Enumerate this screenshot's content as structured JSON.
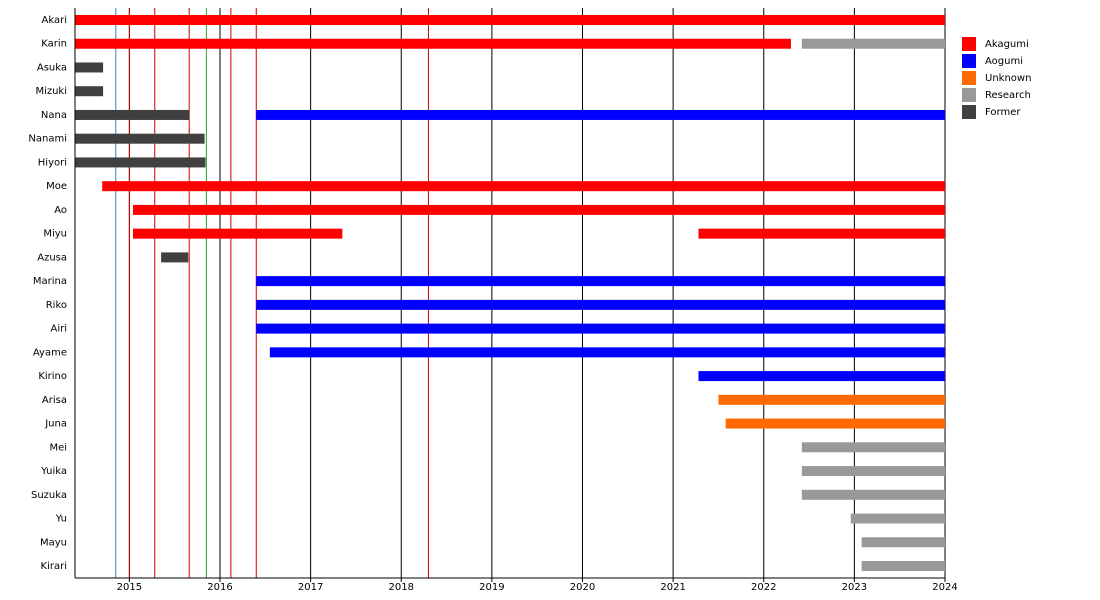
{
  "chart_data": {
    "type": "timeline",
    "categories": [
      "Akari",
      "Karin",
      "Asuka",
      "Mizuki",
      "Nana",
      "Nanami",
      "Hiyori",
      "Moe",
      "Ao",
      "Miyu",
      "Azusa",
      "Marina",
      "Riko",
      "Airi",
      "Ayame",
      "Kirino",
      "Arisa",
      "Juna",
      "Mei",
      "Yuika",
      "Suzuka",
      "Yu",
      "Mayu",
      "Kirari"
    ],
    "xlim": [
      2014.4,
      2024
    ],
    "xticks": [
      2015,
      2016,
      2017,
      2018,
      2019,
      2020,
      2021,
      2022,
      2023,
      2024
    ],
    "grid": true,
    "legend": "right",
    "vlines": [
      {
        "x": 2014.85,
        "color": "#2a8ab0"
      },
      {
        "x": 2015.0,
        "color": "#cc0000"
      },
      {
        "x": 2015.28,
        "color": "#cc0000"
      },
      {
        "x": 2015.66,
        "color": "#cc0000"
      },
      {
        "x": 2015.85,
        "color": "#2ca02c"
      },
      {
        "x": 2016.12,
        "color": "#cc0000"
      },
      {
        "x": 2016.4,
        "color": "#cc0000"
      },
      {
        "x": 2018.3,
        "color": "#cc0000"
      }
    ],
    "series": [
      {
        "name": "Akagumi",
        "color": "#ff0000",
        "bars": [
          {
            "category": "Akari",
            "start": 2014.4,
            "end": 2024
          },
          {
            "category": "Karin",
            "start": 2014.4,
            "end": 2022.3
          },
          {
            "category": "Moe",
            "start": 2014.7,
            "end": 2024
          },
          {
            "category": "Ao",
            "start": 2015.04,
            "end": 2024
          },
          {
            "category": "Miyu",
            "start": 2015.04,
            "end": 2017.35
          },
          {
            "category": "Miyu",
            "start": 2021.28,
            "end": 2024
          }
        ]
      },
      {
        "name": "Aogumi",
        "color": "#0000ff",
        "bars": [
          {
            "category": "Nana",
            "start": 2016.4,
            "end": 2024
          },
          {
            "category": "Marina",
            "start": 2016.4,
            "end": 2024
          },
          {
            "category": "Riko",
            "start": 2016.4,
            "end": 2024
          },
          {
            "category": "Airi",
            "start": 2016.4,
            "end": 2024
          },
          {
            "category": "Ayame",
            "start": 2016.55,
            "end": 2024
          },
          {
            "category": "Kirino",
            "start": 2021.28,
            "end": 2024
          }
        ]
      },
      {
        "name": "Unknown",
        "color": "#ff6a00",
        "bars": [
          {
            "category": "Arisa",
            "start": 2021.5,
            "end": 2024
          },
          {
            "category": "Juna",
            "start": 2021.58,
            "end": 2024
          }
        ]
      },
      {
        "name": "Research",
        "color": "#999999",
        "bars": [
          {
            "category": "Karin",
            "start": 2022.42,
            "end": 2024
          },
          {
            "category": "Mei",
            "start": 2022.42,
            "end": 2024
          },
          {
            "category": "Yuika",
            "start": 2022.42,
            "end": 2024
          },
          {
            "category": "Suzuka",
            "start": 2022.42,
            "end": 2024
          },
          {
            "category": "Yu",
            "start": 2022.96,
            "end": 2024
          },
          {
            "category": "Mayu",
            "start": 2023.08,
            "end": 2024
          },
          {
            "category": "Kirari",
            "start": 2023.08,
            "end": 2024
          }
        ]
      },
      {
        "name": "Former",
        "color": "#404040",
        "bars": [
          {
            "category": "Asuka",
            "start": 2014.4,
            "end": 2014.71
          },
          {
            "category": "Mizuki",
            "start": 2014.4,
            "end": 2014.71
          },
          {
            "category": "Nana",
            "start": 2014.4,
            "end": 2015.66
          },
          {
            "category": "Nanami",
            "start": 2014.4,
            "end": 2015.83
          },
          {
            "category": "Hiyori",
            "start": 2014.4,
            "end": 2015.84
          },
          {
            "category": "Azusa",
            "start": 2015.35,
            "end": 2015.65
          }
        ]
      }
    ]
  }
}
